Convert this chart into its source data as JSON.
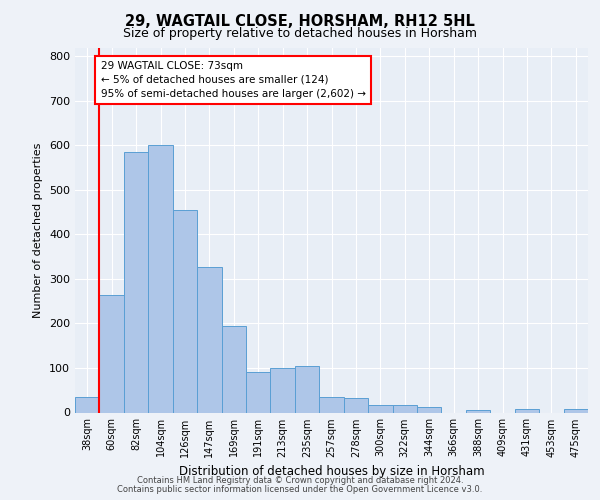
{
  "title1": "29, WAGTAIL CLOSE, HORSHAM, RH12 5HL",
  "title2": "Size of property relative to detached houses in Horsham",
  "xlabel": "Distribution of detached houses by size in Horsham",
  "ylabel": "Number of detached properties",
  "footer1": "Contains HM Land Registry data © Crown copyright and database right 2024.",
  "footer2": "Contains public sector information licensed under the Open Government Licence v3.0.",
  "annotation_title": "29 WAGTAIL CLOSE: 73sqm",
  "annotation_line1": "← 5% of detached houses are smaller (124)",
  "annotation_line2": "95% of semi-detached houses are larger (2,602) →",
  "bar_labels": [
    "38sqm",
    "60sqm",
    "82sqm",
    "104sqm",
    "126sqm",
    "147sqm",
    "169sqm",
    "191sqm",
    "213sqm",
    "235sqm",
    "257sqm",
    "278sqm",
    "300sqm",
    "322sqm",
    "344sqm",
    "366sqm",
    "388sqm",
    "409sqm",
    "431sqm",
    "453sqm",
    "475sqm"
  ],
  "bar_values": [
    35,
    265,
    585,
    600,
    455,
    328,
    195,
    90,
    100,
    105,
    35,
    32,
    17,
    17,
    12,
    0,
    5,
    0,
    8,
    0,
    7
  ],
  "bar_color": "#aec6e8",
  "bar_edge_color": "#5a9fd4",
  "vline_x_index": 1,
  "vline_color": "red",
  "ylim": [
    0,
    820
  ],
  "yticks": [
    0,
    100,
    200,
    300,
    400,
    500,
    600,
    700,
    800
  ],
  "annotation_box_color": "red",
  "bg_color": "#eef2f8",
  "axes_bg_color": "#e8eef6"
}
